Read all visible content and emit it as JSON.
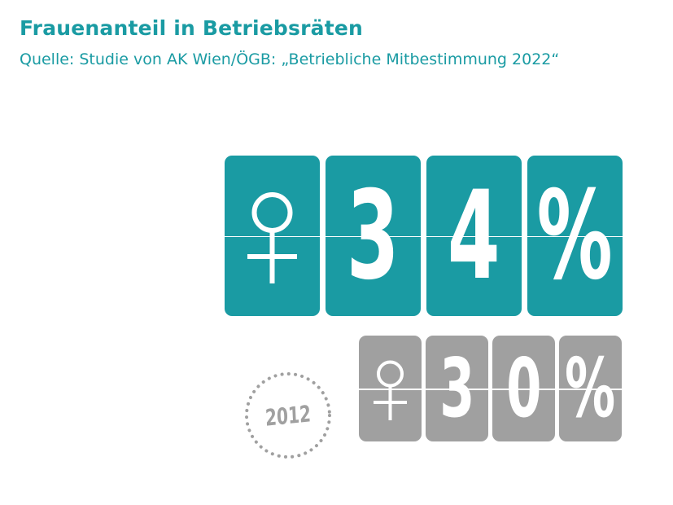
{
  "header": {
    "title": "Frauenanteil in Betriebsräten",
    "subtitle": "Quelle: Studie von AK Wien/ÖGB: „Betriebliche Mitbestimmung 2022“"
  },
  "current": {
    "value": "34",
    "digits": [
      "3",
      "4"
    ],
    "percent_sign": "%",
    "symbol_icon": "female-symbol-icon",
    "color": "#1a9ba3"
  },
  "previous": {
    "year": "2012",
    "value": "30",
    "digits": [
      "3",
      "0"
    ],
    "percent_sign": "%",
    "symbol_icon": "female-symbol-icon",
    "color": "#a0a0a0"
  }
}
